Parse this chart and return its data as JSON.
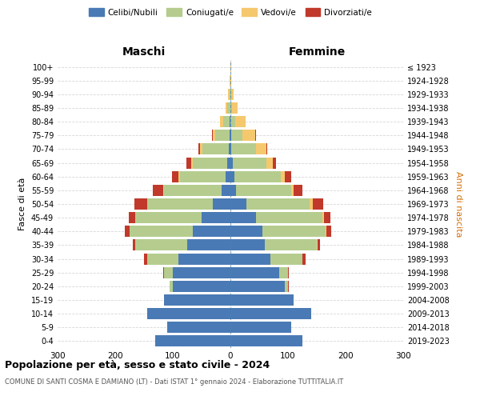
{
  "age_groups": [
    "0-4",
    "5-9",
    "10-14",
    "15-19",
    "20-24",
    "25-29",
    "30-34",
    "35-39",
    "40-44",
    "45-49",
    "50-54",
    "55-59",
    "60-64",
    "65-69",
    "70-74",
    "75-79",
    "80-84",
    "85-89",
    "90-94",
    "95-99",
    "100+"
  ],
  "birth_years": [
    "2019-2023",
    "2014-2018",
    "2009-2013",
    "2004-2008",
    "1999-2003",
    "1994-1998",
    "1989-1993",
    "1984-1988",
    "1979-1983",
    "1974-1978",
    "1969-1973",
    "1964-1968",
    "1959-1963",
    "1954-1958",
    "1949-1953",
    "1944-1948",
    "1939-1943",
    "1934-1938",
    "1929-1933",
    "1924-1928",
    "≤ 1923"
  ],
  "males": {
    "celibi": [
      130,
      110,
      145,
      115,
      100,
      100,
      90,
      75,
      65,
      50,
      30,
      15,
      8,
      5,
      3,
      1,
      1,
      0,
      0,
      0,
      0
    ],
    "coniugati": [
      0,
      0,
      0,
      0,
      5,
      15,
      55,
      90,
      110,
      115,
      115,
      100,
      80,
      60,
      45,
      25,
      12,
      5,
      2,
      0,
      0
    ],
    "vedovi": [
      0,
      0,
      0,
      0,
      0,
      0,
      0,
      0,
      0,
      0,
      0,
      2,
      2,
      3,
      5,
      5,
      5,
      3,
      2,
      1,
      0
    ],
    "divorziati": [
      0,
      0,
      0,
      0,
      0,
      2,
      5,
      5,
      8,
      12,
      22,
      18,
      12,
      8,
      2,
      1,
      0,
      0,
      0,
      0,
      0
    ]
  },
  "females": {
    "nubili": [
      125,
      105,
      140,
      110,
      95,
      85,
      70,
      60,
      55,
      45,
      28,
      10,
      7,
      4,
      2,
      1,
      0,
      0,
      0,
      0,
      0
    ],
    "coniugate": [
      0,
      0,
      0,
      0,
      5,
      15,
      55,
      90,
      110,
      115,
      110,
      95,
      80,
      58,
      42,
      20,
      8,
      3,
      1,
      0,
      0
    ],
    "vedove": [
      0,
      0,
      0,
      0,
      0,
      0,
      0,
      1,
      2,
      3,
      5,
      5,
      8,
      12,
      18,
      22,
      18,
      10,
      5,
      2,
      1
    ],
    "divorziate": [
      0,
      0,
      0,
      0,
      1,
      2,
      5,
      5,
      8,
      10,
      18,
      15,
      10,
      5,
      2,
      1,
      0,
      0,
      0,
      0,
      0
    ]
  },
  "colors": {
    "celibi": "#4a7ab5",
    "coniugati": "#b5cc8e",
    "vedovi": "#f5c86e",
    "divorziati": "#c0392b"
  },
  "xlim": 300,
  "title": "Popolazione per età, sesso e stato civile - 2024",
  "subtitle": "COMUNE DI SANTI COSMA E DAMIANO (LT) - Dati ISTAT 1° gennaio 2024 - Elaborazione TUTTITALIA.IT",
  "ylabel_left": "Fasce di età",
  "ylabel_right": "Anni di nascita",
  "label_maschi": "Maschi",
  "label_femmine": "Femmine",
  "legend_labels": [
    "Celibi/Nubili",
    "Coniugati/e",
    "Vedovi/e",
    "Divorziati/e"
  ]
}
